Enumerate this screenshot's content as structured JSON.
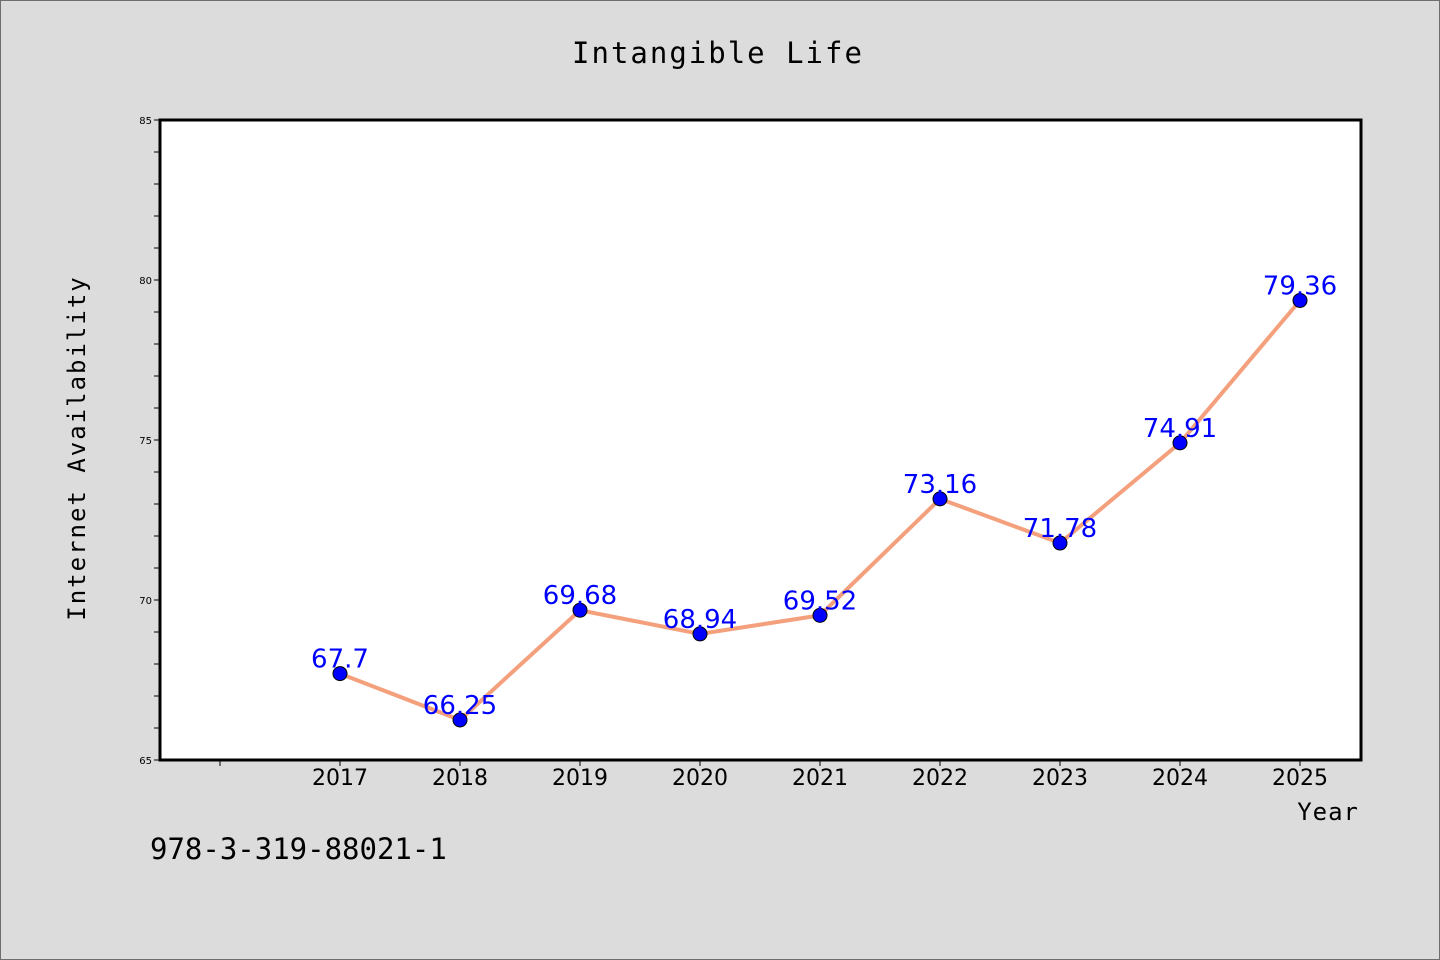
{
  "chart_data": {
    "type": "line",
    "title": "Intangible Life",
    "xlabel": "Year",
    "ylabel": "Internet Availability",
    "categories": [
      "2017",
      "2018",
      "2019",
      "2020",
      "2021",
      "2022",
      "2023",
      "2024",
      "2025"
    ],
    "series": [
      {
        "values": [
          67.7,
          66.25,
          69.68,
          68.94,
          69.52,
          73.16,
          71.78,
          74.91,
          79.36
        ],
        "labels": [
          "67.7",
          "66.25",
          "69.68",
          "68.94",
          "69.52",
          "73.16",
          "71.78",
          "74.91",
          "79.36"
        ]
      }
    ],
    "ylim": [
      65,
      85
    ],
    "yticks": [
      "65",
      "70",
      "75",
      "80",
      "85"
    ],
    "grid": false,
    "colors": {
      "line": "#f4a07c",
      "marker": "#0000ff",
      "label": "#0000ff",
      "plot_background": "#ffffff",
      "page_background": "#dcdcdc"
    }
  },
  "footer": {
    "isbn": "978-3-319-88021-1"
  }
}
